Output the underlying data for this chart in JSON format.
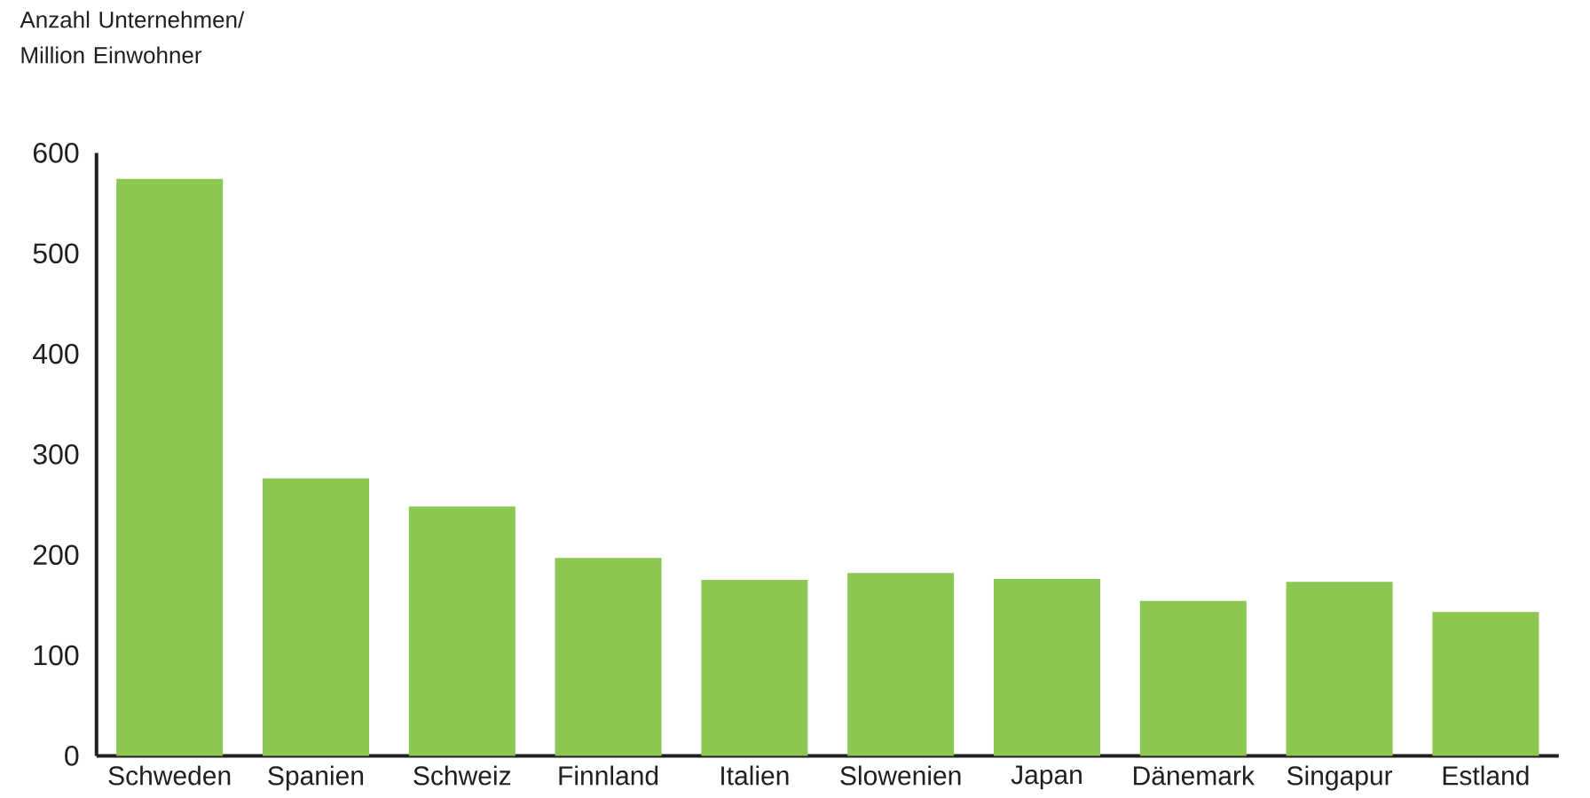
{
  "chart_data": {
    "type": "bar",
    "ylabel": "Anzahl Unternehmen/ Million Einwohner",
    "categories": [
      "Schweden",
      "Spanien",
      "Schweiz",
      "Finnland",
      "Italien",
      "Slowenien",
      "Japan",
      "Dänemark",
      "Singapur",
      "Estland"
    ],
    "values": [
      574,
      276,
      248,
      197,
      175,
      182,
      176,
      154,
      173,
      143
    ],
    "color": "#8bc751",
    "ylim": [
      0,
      600
    ],
    "yticks": [
      0,
      100,
      200,
      300,
      400,
      500,
      600
    ]
  }
}
